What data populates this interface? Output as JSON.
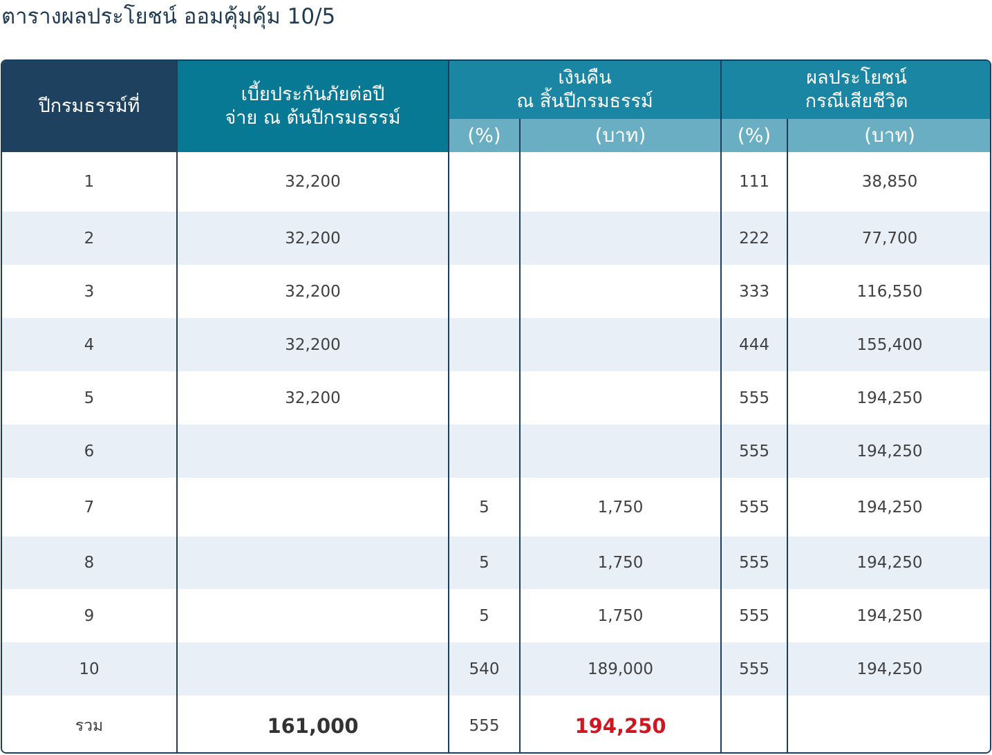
{
  "title": "ตารางผลประโยชน์ ออมคุ้มคุ้ม 10/5",
  "header": {
    "year": "ปีกรมธรรม์ที่",
    "premium_line1": "เบี้ยประกันภัยต่อปี",
    "premium_line2": "จ่าย ณ ต้นปีกรมธรรม์",
    "cash_line1": "เงินคืน",
    "cash_line2": "ณ สิ้นปีกรมธรรม์",
    "death_line1": "ผลประโยชน์",
    "death_line2": "กรณีเสียชีวิต",
    "cash_pct": "(%)",
    "cash_baht": "(บาท)",
    "death_pct": "(%)",
    "death_baht": "(บาท)"
  },
  "rows": [
    {
      "year": "1",
      "premium": "32,200",
      "cash_pct": "",
      "cash_baht": "",
      "death_pct": "111",
      "death_baht": "38,850"
    },
    {
      "year": "2",
      "premium": "32,200",
      "cash_pct": "",
      "cash_baht": "",
      "death_pct": "222",
      "death_baht": "77,700"
    },
    {
      "year": "3",
      "premium": "32,200",
      "cash_pct": "",
      "cash_baht": "",
      "death_pct": "333",
      "death_baht": "116,550"
    },
    {
      "year": "4",
      "premium": "32,200",
      "cash_pct": "",
      "cash_baht": "",
      "death_pct": "444",
      "death_baht": "155,400"
    },
    {
      "year": "5",
      "premium": "32,200",
      "cash_pct": "",
      "cash_baht": "",
      "death_pct": "555",
      "death_baht": "194,250"
    },
    {
      "year": "6",
      "premium": "",
      "cash_pct": "",
      "cash_baht": "",
      "death_pct": "555",
      "death_baht": "194,250"
    },
    {
      "year": "7",
      "premium": "",
      "cash_pct": "5",
      "cash_baht": "1,750",
      "death_pct": "555",
      "death_baht": "194,250"
    },
    {
      "year": "8",
      "premium": "",
      "cash_pct": "5",
      "cash_baht": "1,750",
      "death_pct": "555",
      "death_baht": "194,250"
    },
    {
      "year": "9",
      "premium": "",
      "cash_pct": "5",
      "cash_baht": "1,750",
      "death_pct": "555",
      "death_baht": "194,250"
    },
    {
      "year": "10",
      "premium": "",
      "cash_pct": "540",
      "cash_baht": "189,000",
      "death_pct": "555",
      "death_baht": "194,250"
    }
  ],
  "total": {
    "label": "รวม",
    "premium": "161,000",
    "cash_pct": "555",
    "cash_baht": "194,250",
    "death_pct": "",
    "death_baht": ""
  },
  "colors": {
    "header_dark": "#1e4160",
    "header_teal": "#087995",
    "header_group": "#1a86a3",
    "header_sub": "#6aaec3",
    "row_alt": "#e8eff6",
    "highlight": "#d0161e"
  }
}
